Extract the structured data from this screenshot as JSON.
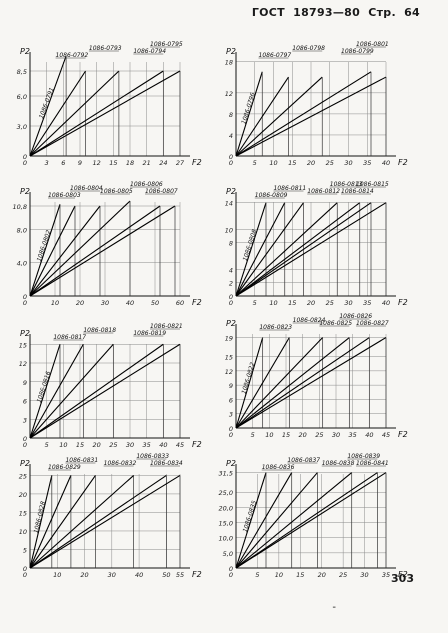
{
  "header": {
    "standard": "ГОСТ",
    "number": "18793—80",
    "page_label": "Стр.",
    "page_value": "64"
  },
  "page_number": "303",
  "footer_mark": "-",
  "chart_data": [
    {
      "type": "line",
      "ylabel": "P2",
      "xlabel": "F2",
      "y_ticks": [
        "8,5",
        "6,0",
        "3,0",
        "0"
      ],
      "x_ticks": [
        "3",
        "6",
        "9",
        "12",
        "15",
        "18",
        "21",
        "24",
        "27"
      ],
      "xmax": 27,
      "ymax": 10,
      "series": [
        {
          "name": "1086-0791",
          "x_end": 6.5,
          "y_end": 10,
          "label_pos": "on-line"
        },
        {
          "name": "1086-0792",
          "x_end": 10,
          "y_end": 8.5
        },
        {
          "name": "1086-0793",
          "x_end": 16,
          "y_end": 8.5
        },
        {
          "name": "1086-0794",
          "x_end": 24,
          "y_end": 8.5
        },
        {
          "name": "1086-0795",
          "x_end": 27,
          "y_end": 8.5
        }
      ]
    },
    {
      "type": "line",
      "ylabel": "P2",
      "xlabel": "F2",
      "y_ticks": [
        "18",
        "12",
        "8",
        "4",
        "0"
      ],
      "x_ticks": [
        "5",
        "10",
        "15",
        "20",
        "25",
        "30",
        "35",
        "40"
      ],
      "xmax": 40,
      "ymax": 19,
      "series": [
        {
          "name": "1086-0796",
          "x_end": 7,
          "y_end": 16,
          "label_pos": "on-line"
        },
        {
          "name": "1086-0797",
          "x_end": 14,
          "y_end": 15
        },
        {
          "name": "1086-0798",
          "x_end": 23,
          "y_end": 15
        },
        {
          "name": "1086-0799",
          "x_end": 36,
          "y_end": 16
        },
        {
          "name": "1086-0801",
          "x_end": 40,
          "y_end": 15
        }
      ]
    },
    {
      "type": "line",
      "ylabel": "P2",
      "xlabel": "F2",
      "y_ticks": [
        "10,8",
        "8,0",
        "4,0",
        "0"
      ],
      "x_ticks": [
        "10",
        "20",
        "30",
        "40",
        "50",
        "60"
      ],
      "xmax": 60,
      "ymax": 12,
      "series": [
        {
          "name": "1086-0802",
          "x_end": 12,
          "y_end": 11,
          "label_pos": "on-line"
        },
        {
          "name": "1086-0803",
          "x_end": 18,
          "y_end": 10.8
        },
        {
          "name": "1086-0804",
          "x_end": 28,
          "y_end": 10.8
        },
        {
          "name": "1086-0805",
          "x_end": 40,
          "y_end": 11.4
        },
        {
          "name": "1086-0806",
          "x_end": 52,
          "y_end": 10.8
        },
        {
          "name": "1086-0807",
          "x_end": 58,
          "y_end": 10.8
        }
      ]
    },
    {
      "type": "line",
      "ylabel": "P2",
      "xlabel": "F2",
      "y_ticks": [
        "14",
        "10",
        "8",
        "4",
        "2",
        "0"
      ],
      "x_ticks": [
        "5",
        "10",
        "15",
        "20",
        "25",
        "30",
        "35",
        "40"
      ],
      "xmax": 40,
      "ymax": 15,
      "series": [
        {
          "name": "1086-0808",
          "x_end": 8,
          "y_end": 14,
          "label_pos": "on-line"
        },
        {
          "name": "1086-0809",
          "x_end": 13,
          "y_end": 14
        },
        {
          "name": "1086-0811",
          "x_end": 18,
          "y_end": 14
        },
        {
          "name": "1086-0812",
          "x_end": 27,
          "y_end": 14
        },
        {
          "name": "1086-0813",
          "x_end": 33,
          "y_end": 14
        },
        {
          "name": "1086-0814",
          "x_end": 36,
          "y_end": 14
        },
        {
          "name": "1086-0815",
          "x_end": 40,
          "y_end": 14
        }
      ]
    },
    {
      "type": "line",
      "ylabel": "P2",
      "xlabel": "F2",
      "y_ticks": [
        "15",
        "12",
        "9",
        "6",
        "3",
        "0"
      ],
      "x_ticks": [
        "5",
        "10",
        "15",
        "20",
        "25",
        "30",
        "35",
        "40",
        "45"
      ],
      "xmax": 45,
      "ymax": 16,
      "series": [
        {
          "name": "1086-0816",
          "x_end": 9,
          "y_end": 15,
          "label_pos": "on-line"
        },
        {
          "name": "1086-0817",
          "x_end": 16,
          "y_end": 15
        },
        {
          "name": "1086-0818",
          "x_end": 25,
          "y_end": 15
        },
        {
          "name": "1086-0819",
          "x_end": 40,
          "y_end": 15
        },
        {
          "name": "1086-0821",
          "x_end": 45,
          "y_end": 15
        }
      ]
    },
    {
      "type": "line",
      "ylabel": "P2",
      "xlabel": "F2",
      "y_ticks": [
        "19",
        "15",
        "12",
        "9",
        "6",
        "3",
        "0"
      ],
      "x_ticks": [
        "5",
        "10",
        "15",
        "20",
        "25",
        "30",
        "35",
        "40",
        "45"
      ],
      "xmax": 45,
      "ymax": 21,
      "series": [
        {
          "name": "1086-0822",
          "x_end": 8,
          "y_end": 19,
          "label_pos": "on-line"
        },
        {
          "name": "1086-0823",
          "x_end": 16,
          "y_end": 19
        },
        {
          "name": "1086-0824",
          "x_end": 26,
          "y_end": 19
        },
        {
          "name": "1086-0825",
          "x_end": 34,
          "y_end": 19
        },
        {
          "name": "1086-0826",
          "x_end": 40,
          "y_end": 19
        },
        {
          "name": "1086-0827",
          "x_end": 45,
          "y_end": 19
        }
      ]
    },
    {
      "type": "line",
      "ylabel": "P2",
      "xlabel": "F2",
      "y_ticks": [
        "25",
        "20",
        "15",
        "10",
        "5",
        "0"
      ],
      "x_ticks": [
        "10",
        "20",
        "30",
        "40",
        "50",
        "55"
      ],
      "xmax": 55,
      "ymax": 27,
      "series": [
        {
          "name": "1086-0828",
          "x_end": 8,
          "y_end": 25,
          "label_pos": "on-line"
        },
        {
          "name": "1086-0829",
          "x_end": 15,
          "y_end": 25
        },
        {
          "name": "1086-0831",
          "x_end": 24,
          "y_end": 25
        },
        {
          "name": "1086-0832",
          "x_end": 38,
          "y_end": 25
        },
        {
          "name": "1086-0833",
          "x_end": 50,
          "y_end": 25
        },
        {
          "name": "1086-0834",
          "x_end": 55,
          "y_end": 25
        }
      ]
    },
    {
      "type": "line",
      "ylabel": "P2",
      "xlabel": "F2",
      "y_ticks": [
        "31,5",
        "25,0",
        "20,0",
        "15,0",
        "10,0",
        "5,0",
        "0"
      ],
      "x_ticks": [
        "5",
        "10",
        "15",
        "20",
        "25",
        "30",
        "35"
      ],
      "xmax": 35,
      "ymax": 33,
      "series": [
        {
          "name": "1086-0835",
          "x_end": 7,
          "y_end": 31.5,
          "label_pos": "on-line"
        },
        {
          "name": "1086-0836",
          "x_end": 13,
          "y_end": 31.5
        },
        {
          "name": "1086-0837",
          "x_end": 19,
          "y_end": 31.5
        },
        {
          "name": "1086-0838",
          "x_end": 27,
          "y_end": 31.5
        },
        {
          "name": "1086-0839",
          "x_end": 33,
          "y_end": 31.5
        },
        {
          "name": "1086-0841",
          "x_end": 35,
          "y_end": 31.5
        }
      ]
    }
  ]
}
